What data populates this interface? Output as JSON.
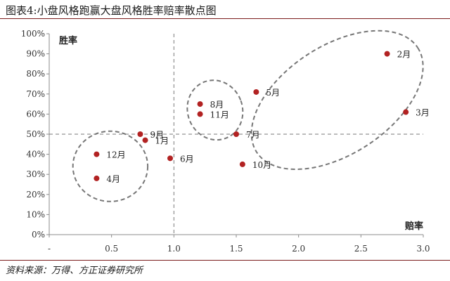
{
  "figure_title": "图表4:小盘风格跑赢大盘风格胜率赔率散点图",
  "source_note": "资料来源：万得、方正证券研究所",
  "chart_data": {
    "type": "scatter",
    "xlabel": "赔率",
    "ylabel": "胜率",
    "xlim": [
      0,
      3.0
    ],
    "ylim": [
      0,
      1.0
    ],
    "x_ticks": [
      {
        "value": 0,
        "label": "-"
      },
      {
        "value": 0.5,
        "label": "0.5"
      },
      {
        "value": 1.0,
        "label": "1.0"
      },
      {
        "value": 1.5,
        "label": "1.5"
      },
      {
        "value": 2.0,
        "label": "2.0"
      },
      {
        "value": 2.5,
        "label": "2.5"
      },
      {
        "value": 3.0,
        "label": "3.0"
      }
    ],
    "y_ticks": [
      {
        "value": 0,
        "label": "0%"
      },
      {
        "value": 0.1,
        "label": "10%"
      },
      {
        "value": 0.2,
        "label": "20%"
      },
      {
        "value": 0.3,
        "label": "30%"
      },
      {
        "value": 0.4,
        "label": "40%"
      },
      {
        "value": 0.5,
        "label": "50%"
      },
      {
        "value": 0.6,
        "label": "60%"
      },
      {
        "value": 0.7,
        "label": "70%"
      },
      {
        "value": 0.8,
        "label": "80%"
      },
      {
        "value": 0.9,
        "label": "90%"
      },
      {
        "value": 1.0,
        "label": "100%"
      }
    ],
    "reference_lines": {
      "x": 1.0,
      "y": 0.5
    },
    "points": [
      {
        "label": "1月",
        "x": 0.77,
        "y": 0.47
      },
      {
        "label": "2月",
        "x": 2.71,
        "y": 0.9
      },
      {
        "label": "3月",
        "x": 2.86,
        "y": 0.61
      },
      {
        "label": "4月",
        "x": 0.38,
        "y": 0.28
      },
      {
        "label": "5月",
        "x": 1.66,
        "y": 0.71
      },
      {
        "label": "6月",
        "x": 0.97,
        "y": 0.38
      },
      {
        "label": "7月",
        "x": 1.5,
        "y": 0.5
      },
      {
        "label": "8月",
        "x": 1.21,
        "y": 0.65
      },
      {
        "label": "9月",
        "x": 0.73,
        "y": 0.5
      },
      {
        "label": "10月",
        "x": 1.55,
        "y": 0.35
      },
      {
        "label": "11月",
        "x": 1.21,
        "y": 0.6
      },
      {
        "label": "12月",
        "x": 0.38,
        "y": 0.4
      }
    ],
    "point_color": "#b22222",
    "clusters": [
      {
        "cx": 0.49,
        "cy": 0.34,
        "rx": 0.3,
        "ry": 0.175,
        "rotation_deg": 0
      },
      {
        "cx": 1.33,
        "cy": 0.62,
        "rx": 0.22,
        "ry": 0.15,
        "rotation_deg": -20
      },
      {
        "cx": 2.31,
        "cy": 0.67,
        "rx": 0.77,
        "ry": 0.27,
        "rotation_deg": -33
      }
    ],
    "grid": false,
    "legend": "none"
  }
}
